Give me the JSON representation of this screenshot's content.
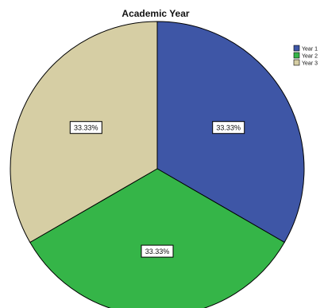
{
  "chart_data": {
    "type": "pie",
    "title": "Academic Year",
    "slices": [
      {
        "label": "Year 1",
        "value": 33.33,
        "data_label": "33.33%",
        "color": "#3e56a6"
      },
      {
        "label": "Year 2",
        "value": 33.33,
        "data_label": "33.33%",
        "color": "#35b548"
      },
      {
        "label": "Year 3",
        "value": 33.33,
        "data_label": "33.33%",
        "color": "#d6cea4"
      }
    ],
    "legend_position": "top-right"
  },
  "colors": {
    "background": "#ffffff",
    "outline": "#000000",
    "label_box": "#ffffff"
  }
}
